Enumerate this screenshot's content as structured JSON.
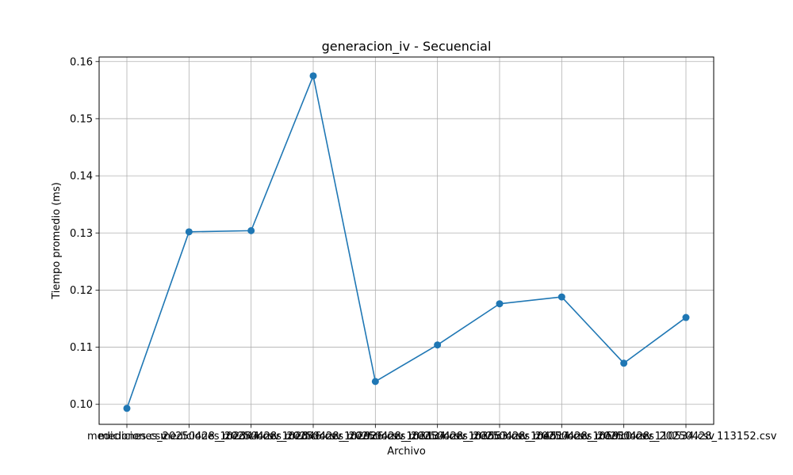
{
  "chart_data": {
    "type": "line",
    "title": "generacion_iv - Secuencial",
    "xlabel": "Archivo",
    "ylabel": "Tiempo promedio (ms)",
    "categories": [
      "mediciones.csv",
      "mediciones_20250428_102344.csv",
      "mediciones_20250428_102846.csv",
      "mediciones_20250428_102926.csv",
      "mediciones_20250428_103134.csv",
      "mediciones_20250428_103553.csv",
      "mediciones_20250428_104514.csv",
      "mediciones_20250428_105910.csv",
      "mediciones_20250428_110534.csv",
      "mediciones_20250428_113152.csv"
    ],
    "series": [
      {
        "values": [
          0.0993,
          0.1302,
          0.1304,
          0.1575,
          0.104,
          0.1104,
          0.1176,
          0.1188,
          0.1072,
          0.1152
        ],
        "color": "#1f77b4"
      }
    ],
    "ylim": [
      0.0965,
      0.1608
    ],
    "yticks": [
      0.1,
      0.11,
      0.12,
      0.13,
      0.14,
      0.15,
      0.16
    ],
    "ytick_labels": [
      "0.10",
      "0.11",
      "0.12",
      "0.13",
      "0.14",
      "0.15",
      "0.16"
    ],
    "grid": true,
    "line_color": "#1f77b4",
    "grid_color": "#b0b0b0"
  }
}
